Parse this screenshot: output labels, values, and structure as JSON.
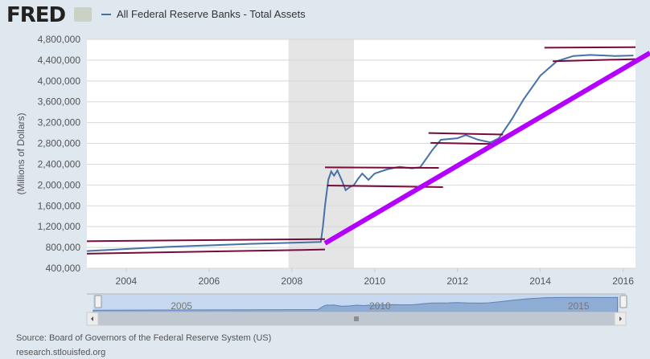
{
  "header": {
    "logo_text": "FRED",
    "legend_label": "All Federal Reserve Banks - Total Assets"
  },
  "chart_data": {
    "type": "line",
    "title": "",
    "xlabel": "",
    "ylabel": "(Millions of Dollars)",
    "xlim": [
      2003.05,
      2016.3
    ],
    "ylim": [
      400000,
      4800000
    ],
    "grid": true,
    "legend_placement": "top-left",
    "series_color": "#4572a7",
    "x_ticks": [
      "2004",
      "2006",
      "2008",
      "2010",
      "2012",
      "2014",
      "2016"
    ],
    "y_ticks": [
      "400,000",
      "800,000",
      "1,200,000",
      "1,600,000",
      "2,000,000",
      "2,400,000",
      "2,800,000",
      "3,200,000",
      "3,600,000",
      "4,000,000",
      "4,400,000",
      "4,800,000"
    ],
    "recession_shading": [
      [
        2007.92,
        2009.5
      ]
    ],
    "series": [
      {
        "name": "All Federal Reserve Banks - Total Assets",
        "points": [
          [
            2003.05,
            730000
          ],
          [
            2004,
            770000
          ],
          [
            2005,
            810000
          ],
          [
            2006,
            840000
          ],
          [
            2007,
            870000
          ],
          [
            2008,
            890000
          ],
          [
            2008.7,
            905000
          ],
          [
            2008.75,
            1200000
          ],
          [
            2008.8,
            1600000
          ],
          [
            2008.88,
            2100000
          ],
          [
            2008.95,
            2260000
          ],
          [
            2009.02,
            2180000
          ],
          [
            2009.1,
            2280000
          ],
          [
            2009.2,
            2100000
          ],
          [
            2009.3,
            1900000
          ],
          [
            2009.4,
            1960000
          ],
          [
            2009.5,
            2000000
          ],
          [
            2009.6,
            2120000
          ],
          [
            2009.7,
            2220000
          ],
          [
            2009.85,
            2100000
          ],
          [
            2010,
            2220000
          ],
          [
            2010.3,
            2300000
          ],
          [
            2010.6,
            2350000
          ],
          [
            2010.9,
            2320000
          ],
          [
            2011.1,
            2340000
          ],
          [
            2011.4,
            2680000
          ],
          [
            2011.6,
            2870000
          ],
          [
            2012,
            2900000
          ],
          [
            2012.2,
            2960000
          ],
          [
            2012.5,
            2870000
          ],
          [
            2012.8,
            2820000
          ],
          [
            2013,
            2900000
          ],
          [
            2013.3,
            3250000
          ],
          [
            2013.6,
            3650000
          ],
          [
            2014,
            4100000
          ],
          [
            2014.4,
            4380000
          ],
          [
            2014.8,
            4480000
          ],
          [
            2015.2,
            4500000
          ],
          [
            2015.8,
            4480000
          ],
          [
            2016.25,
            4490000
          ]
        ]
      }
    ],
    "annotations": {
      "trend_lines_color": "#7a0a3a",
      "trend_lines": [
        [
          [
            2003.05,
            920000
          ],
          [
            2008.8,
            960000
          ]
        ],
        [
          [
            2003.05,
            680000
          ],
          [
            2008.8,
            760000
          ]
        ],
        [
          [
            2008.8,
            2340000
          ],
          [
            2011.55,
            2330000
          ]
        ],
        [
          [
            2008.85,
            1990000
          ],
          [
            2011.65,
            1960000
          ]
        ],
        [
          [
            2011.3,
            3000000
          ],
          [
            2013.1,
            2970000
          ]
        ],
        [
          [
            2011.35,
            2810000
          ],
          [
            2012.85,
            2790000
          ]
        ],
        [
          [
            2014.1,
            4640000
          ],
          [
            2016.3,
            4650000
          ]
        ],
        [
          [
            2014.3,
            4380000
          ],
          [
            2016.3,
            4420000
          ]
        ]
      ],
      "arrow_color": "#b300ff",
      "arrow_line": [
        [
          2008.8,
          880000
        ],
        [
          2016.65,
          4540000
        ]
      ]
    },
    "navigator": {
      "labels": [
        "2005",
        "2010",
        "2015"
      ],
      "label_years": [
        2005,
        2010,
        2015
      ]
    }
  },
  "footer": {
    "source": "Source: Board of Governors of the Federal Reserve System (US)",
    "url": "research.stlouisfed.org"
  }
}
